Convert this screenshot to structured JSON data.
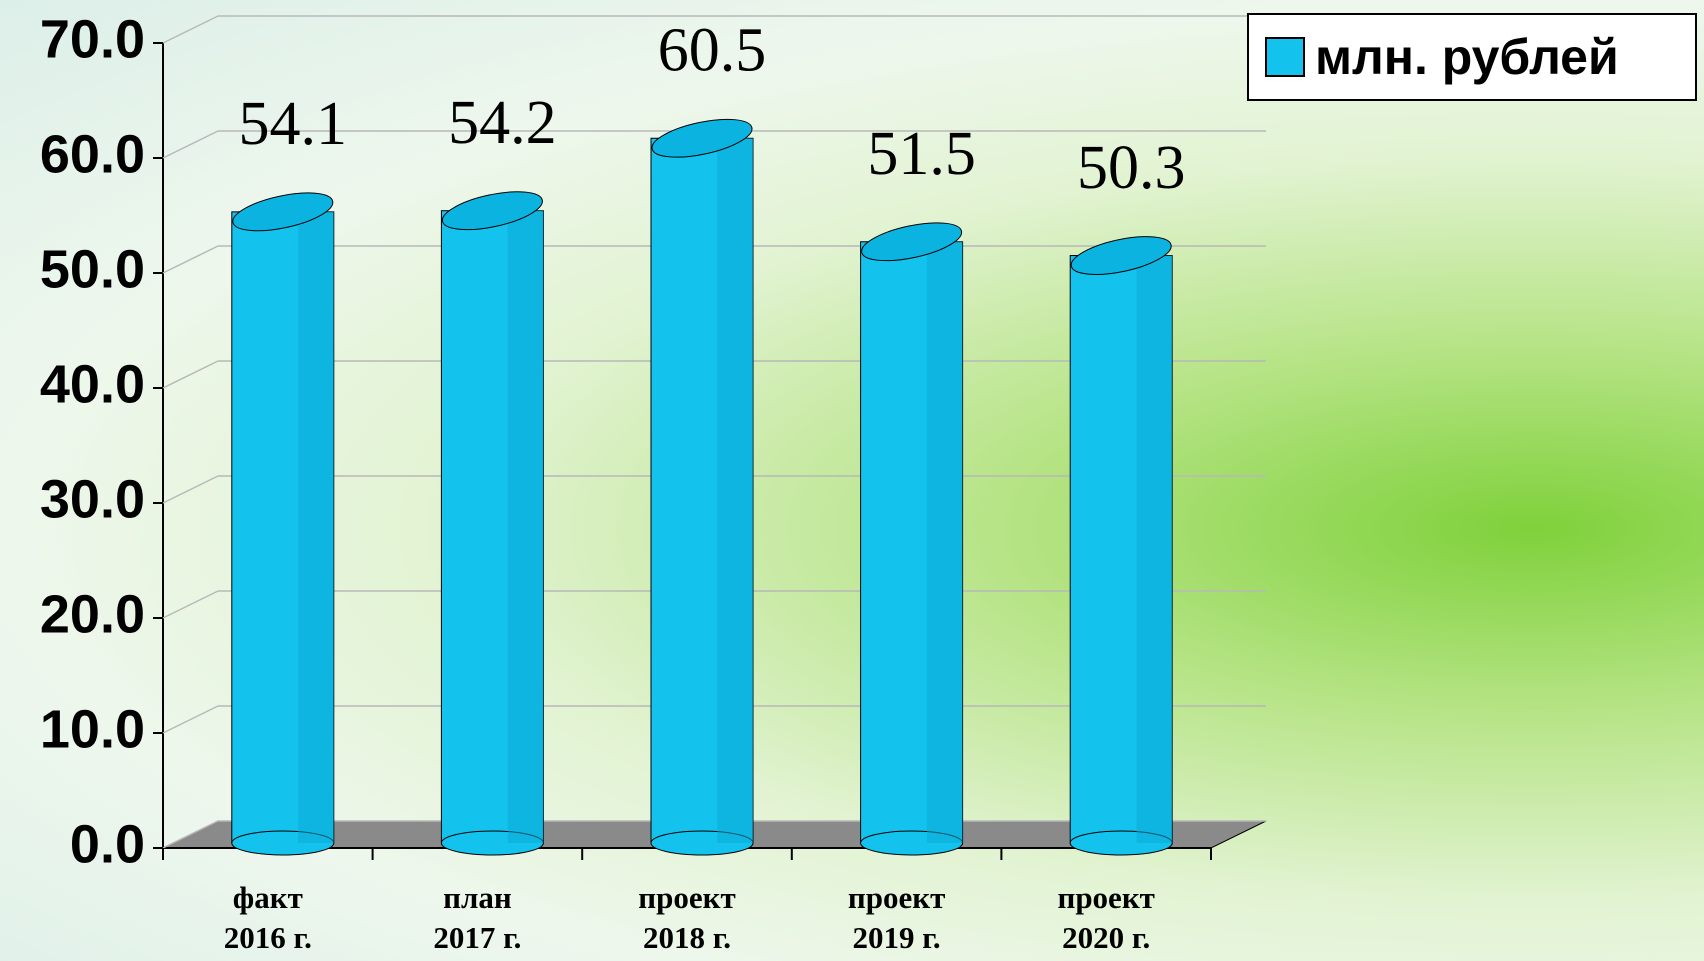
{
  "chart_data": {
    "type": "bar",
    "categories": [
      "факт\n2016 г.",
      "план\n2017 г.",
      "проект\n2018 г.",
      "проект\n2019 г.",
      "проект\n2020 г."
    ],
    "series": [
      {
        "name": "млн. рублей",
        "color": "#13c3ee",
        "values": [
          54.1,
          54.2,
          60.5,
          51.5,
          50.3
        ]
      }
    ],
    "ylim": [
      0,
      70
    ],
    "yticks": [
      {
        "value": 0,
        "label": "0.0"
      },
      {
        "value": 10,
        "label": "10.0"
      },
      {
        "value": 20,
        "label": "20.0"
      },
      {
        "value": 30,
        "label": "30.0"
      },
      {
        "value": 40,
        "label": "40.0"
      },
      {
        "value": 50,
        "label": "50.0"
      },
      {
        "value": 60,
        "label": "60.0"
      },
      {
        "value": 70,
        "label": "70.0"
      }
    ],
    "grid": true,
    "legend": "top-right"
  }
}
